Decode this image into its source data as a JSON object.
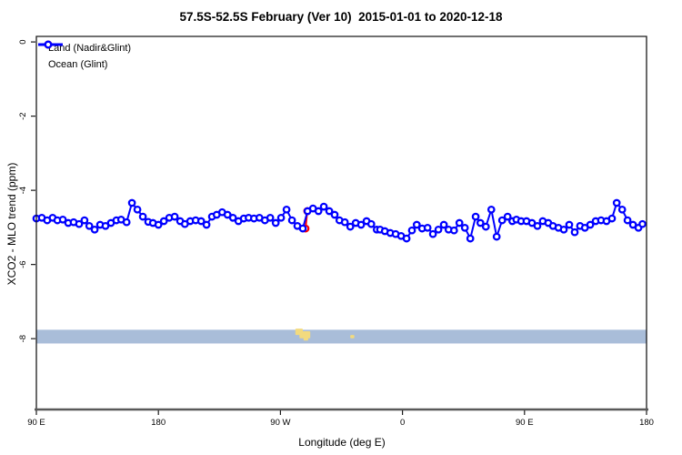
{
  "title": "57.5S-52.5S February (Ver 10)  2015-01-01 to 2020-12-18",
  "legend": {
    "items": [
      {
        "label": "Land (Nadir&Glint)",
        "color": "#ff0000"
      },
      {
        "label": "Ocean (Glint)",
        "color": "#0000ff"
      }
    ]
  },
  "axes": {
    "x": {
      "label": "Longitude (deg E)",
      "range": [
        90,
        540
      ],
      "ticks": [
        {
          "value": 90,
          "label": "90 E"
        },
        {
          "value": 180,
          "label": "180"
        },
        {
          "value": 270,
          "label": "90 W"
        },
        {
          "value": 360,
          "label": "0"
        },
        {
          "value": 450,
          "label": "90 E"
        },
        {
          "value": 540,
          "label": "180"
        }
      ]
    },
    "y": {
      "label": "XCO2 - MLO trend (ppm)",
      "range": [
        -9.91,
        0.15
      ],
      "ticks": [
        {
          "value": 0,
          "label": "0"
        },
        {
          "value": -2,
          "label": "-2"
        },
        {
          "value": -4,
          "label": "-4"
        },
        {
          "value": -6,
          "label": "-6"
        },
        {
          "value": -8,
          "label": "-8"
        }
      ]
    }
  },
  "chart_data": {
    "type": "line",
    "title": "57.5S-52.5S February (Ver 10)  2015-01-01 to 2020-12-18",
    "xlabel": "Longitude (deg E)",
    "ylabel": "XCO2 - MLO trend (ppm)",
    "xlim": [
      90,
      540
    ],
    "ylim": [
      -9.91,
      0.15
    ],
    "grid": false,
    "legend_position": "top-left",
    "marker": "open-circle",
    "series": [
      {
        "name": "Land (Nadir&Glint)",
        "color": "#ff0000",
        "points": [
          [
            288.5,
            -5.03
          ],
          [
            289.8,
            -4.56
          ]
        ]
      },
      {
        "name": "Ocean (Glint)",
        "color": "#0000ff",
        "points": [
          [
            90,
            -4.76
          ],
          [
            94,
            -4.74
          ],
          [
            98,
            -4.81
          ],
          [
            102,
            -4.74
          ],
          [
            105.5,
            -4.81
          ],
          [
            109.5,
            -4.79
          ],
          [
            113.5,
            -4.88
          ],
          [
            117.5,
            -4.86
          ],
          [
            121.5,
            -4.91
          ],
          [
            125.5,
            -4.81
          ],
          [
            129,
            -4.96
          ],
          [
            133,
            -5.06
          ],
          [
            137,
            -4.93
          ],
          [
            141,
            -4.96
          ],
          [
            145,
            -4.88
          ],
          [
            149,
            -4.81
          ],
          [
            152.5,
            -4.79
          ],
          [
            156.5,
            -4.86
          ],
          [
            160.5,
            -4.34
          ],
          [
            164.5,
            -4.52
          ],
          [
            168.5,
            -4.71
          ],
          [
            172.5,
            -4.85
          ],
          [
            176,
            -4.88
          ],
          [
            180,
            -4.93
          ],
          [
            184,
            -4.83
          ],
          [
            188,
            -4.74
          ],
          [
            192,
            -4.71
          ],
          [
            196,
            -4.83
          ],
          [
            199.5,
            -4.91
          ],
          [
            203.5,
            -4.83
          ],
          [
            207.5,
            -4.81
          ],
          [
            211.5,
            -4.83
          ],
          [
            215.5,
            -4.93
          ],
          [
            219.5,
            -4.71
          ],
          [
            223,
            -4.66
          ],
          [
            227,
            -4.59
          ],
          [
            231,
            -4.66
          ],
          [
            235,
            -4.74
          ],
          [
            239,
            -4.83
          ],
          [
            243,
            -4.76
          ],
          [
            246.5,
            -4.74
          ],
          [
            250.5,
            -4.76
          ],
          [
            254.5,
            -4.74
          ],
          [
            258.5,
            -4.81
          ],
          [
            262.5,
            -4.74
          ],
          [
            266.5,
            -4.88
          ],
          [
            270.5,
            -4.74
          ],
          [
            274.5,
            -4.52
          ],
          [
            278.5,
            -4.81
          ],
          [
            282.5,
            -4.96
          ],
          [
            286.5,
            -5.03
          ],
          [
            290,
            -4.56
          ],
          [
            294,
            -4.49
          ],
          [
            298,
            -4.56
          ],
          [
            302,
            -4.44
          ],
          [
            306,
            -4.56
          ],
          [
            310,
            -4.66
          ],
          [
            313.5,
            -4.81
          ],
          [
            317.5,
            -4.86
          ],
          [
            321.5,
            -4.98
          ],
          [
            325.5,
            -4.88
          ],
          [
            329.5,
            -4.93
          ],
          [
            333.5,
            -4.83
          ],
          [
            337,
            -4.91
          ],
          [
            341,
            -5.06
          ],
          [
            343.5,
            -5.06
          ],
          [
            347,
            -5.1
          ],
          [
            351,
            -5.15
          ],
          [
            355,
            -5.18
          ],
          [
            359,
            -5.23
          ],
          [
            363,
            -5.3
          ],
          [
            367,
            -5.08
          ],
          [
            370.5,
            -4.93
          ],
          [
            374.5,
            -5.03
          ],
          [
            378.5,
            -5.01
          ],
          [
            382.5,
            -5.18
          ],
          [
            386.5,
            -5.06
          ],
          [
            390.5,
            -4.93
          ],
          [
            394,
            -5.06
          ],
          [
            398,
            -5.08
          ],
          [
            402,
            -4.88
          ],
          [
            406,
            -5.01
          ],
          [
            410,
            -5.3
          ],
          [
            414,
            -4.71
          ],
          [
            417.5,
            -4.88
          ],
          [
            421.5,
            -4.98
          ],
          [
            425.5,
            -4.52
          ],
          [
            429.5,
            -5.25
          ],
          [
            433.5,
            -4.81
          ],
          [
            437.5,
            -4.71
          ],
          [
            441,
            -4.83
          ],
          [
            444,
            -4.79
          ],
          [
            447.5,
            -4.83
          ],
          [
            451.5,
            -4.83
          ],
          [
            455.5,
            -4.88
          ],
          [
            459.5,
            -4.96
          ],
          [
            463.5,
            -4.83
          ],
          [
            467.5,
            -4.88
          ],
          [
            471,
            -4.96
          ],
          [
            475,
            -5.01
          ],
          [
            479,
            -5.06
          ],
          [
            483,
            -4.93
          ],
          [
            487,
            -5.13
          ],
          [
            491,
            -4.96
          ],
          [
            494.5,
            -5.01
          ],
          [
            498.5,
            -4.93
          ],
          [
            502.5,
            -4.83
          ],
          [
            506.5,
            -4.81
          ],
          [
            510.5,
            -4.83
          ],
          [
            514.5,
            -4.76
          ],
          [
            518,
            -4.34
          ],
          [
            522,
            -4.52
          ],
          [
            526,
            -4.81
          ],
          [
            530,
            -4.93
          ],
          [
            534,
            -5.01
          ],
          [
            537,
            -4.91
          ]
        ]
      }
    ],
    "map_strip": {
      "description": "latitude-band map strip: ocean band with land patches",
      "ocean_color": "#a9bdd9",
      "land_color": "#f2da7e",
      "band_ppm": [
        -7.76,
        -8.13
      ],
      "land_patches": [
        {
          "lon": [
            281,
            286.5
          ],
          "ppm": [
            -7.73,
            -7.9
          ]
        },
        {
          "lon": [
            284,
            292
          ],
          "ppm": [
            -7.8,
            -7.99
          ]
        },
        {
          "lon": [
            287,
            290.5
          ],
          "ppm": [
            -7.96,
            -8.05
          ]
        },
        {
          "lon": [
            321.5,
            324.5
          ],
          "ppm": [
            -7.9,
            -7.99
          ]
        }
      ]
    }
  }
}
